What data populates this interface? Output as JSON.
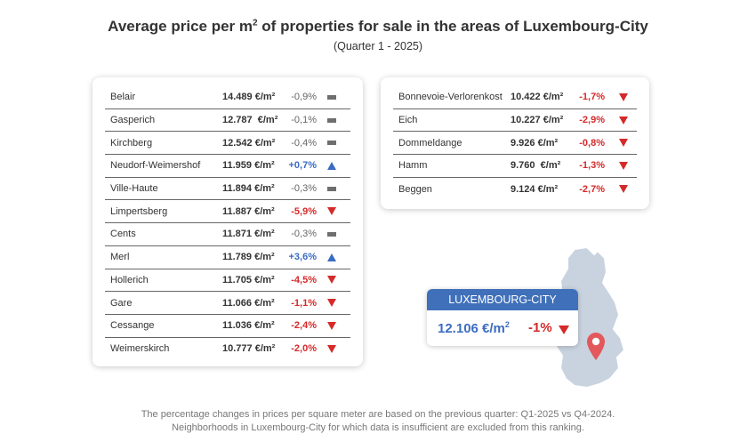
{
  "header": {
    "title_main": "Average price per m",
    "title_sup": "2",
    "title_rest": " of properties for sale in the areas of Luxembourg-City",
    "subtitle": "(Quarter 1 - 2025)"
  },
  "left_table": [
    {
      "name": "Belair",
      "price": "14.489 €/m²",
      "change": "-0,9%",
      "trend": "neutral"
    },
    {
      "name": "Gasperich",
      "price": "12.787  €/m²",
      "change": "-0,1%",
      "trend": "neutral"
    },
    {
      "name": "Kirchberg",
      "price": "12.542 €/m²",
      "change": "-0,4%",
      "trend": "neutral"
    },
    {
      "name": "Neudorf-Weimershof",
      "price": "11.959 €/m²",
      "change": "+0,7%",
      "trend": "up"
    },
    {
      "name": "Ville-Haute",
      "price": "11.894 €/m²",
      "change": "-0,3%",
      "trend": "neutral"
    },
    {
      "name": "Limpertsberg",
      "price": "11.887 €/m²",
      "change": "-5,9%",
      "trend": "down"
    },
    {
      "name": "Cents",
      "price": "11.871 €/m²",
      "change": "-0,3%",
      "trend": "neutral"
    },
    {
      "name": "Merl",
      "price": "11.789 €/m²",
      "change": "+3,6%",
      "trend": "up"
    },
    {
      "name": "Hollerich",
      "price": "11.705 €/m²",
      "change": "-4,5%",
      "trend": "down"
    },
    {
      "name": "Gare",
      "price": "11.066 €/m²",
      "change": "-1,1%",
      "trend": "down"
    },
    {
      "name": "Cessange",
      "price": "11.036 €/m²",
      "change": "-2,4%",
      "trend": "down"
    },
    {
      "name": "Weimerskirch",
      "price": "10.777 €/m²",
      "change": "-2,0%",
      "trend": "down"
    }
  ],
  "right_table": [
    {
      "name": "Bonnevoie-Verlorenkost",
      "price": "10.422 €/m²",
      "change": "-1,7%",
      "trend": "down"
    },
    {
      "name": "Eich",
      "price": "10.227 €/m²",
      "change": "-2,9%",
      "trend": "down"
    },
    {
      "name": "Dommeldange",
      "price": "9.926 €/m²",
      "change": "-0,8%",
      "trend": "down"
    },
    {
      "name": "Hamm",
      "price": "9.760  €/m²",
      "change": "-1,3%",
      "trend": "down"
    },
    {
      "name": "Beggen",
      "price": "9.124 €/m²",
      "change": "-2,7%",
      "trend": "down"
    }
  ],
  "city": {
    "name": "LUXEMBOURG-CITY",
    "price_main": "12.106 €/m",
    "price_sup": "2",
    "change": "-1%",
    "trend": "down"
  },
  "footer": {
    "line1": "The percentage changes in prices per square meter are based on the previous quarter: Q1-2025 vs Q4-2024.",
    "line2": "Neighborhoods in Luxembourg-City for which data is insufficient are excluded from this ranking."
  },
  "colors": {
    "up": "#3b6cc2",
    "down": "#d42a2a",
    "neutral": "#6e6e6e",
    "city_header": "#4070b9",
    "map_fill": "#c9d3df",
    "pin": "#e2585b"
  },
  "icons": {
    "up": "triangle-up-icon",
    "down": "triangle-down-icon",
    "neutral": "dash-icon",
    "map": "luxembourg-map",
    "pin": "location-pin-icon"
  }
}
